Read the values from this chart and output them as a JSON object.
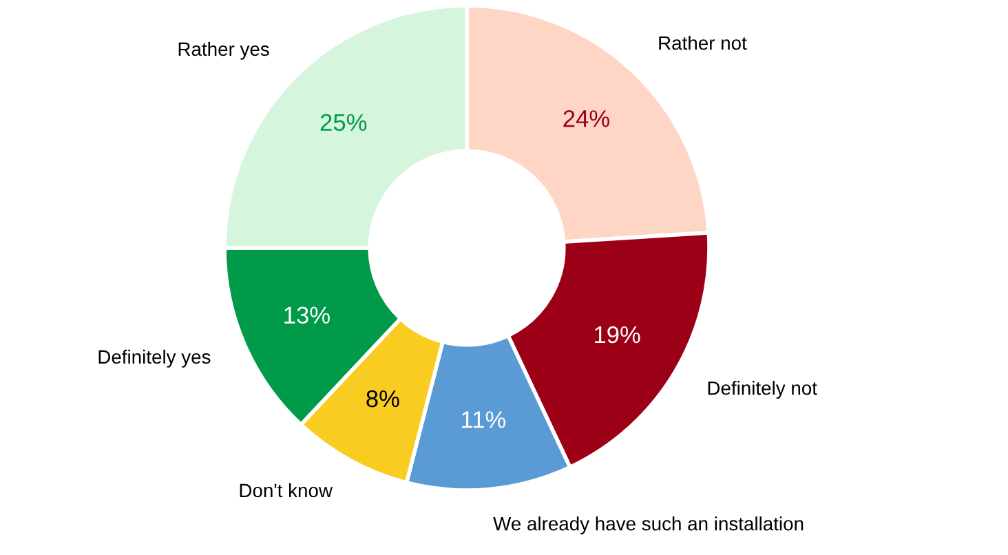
{
  "chart_data": {
    "type": "donut",
    "categories": [
      "Rather not",
      "Definitely not",
      "We already have such an installation",
      "Don't know",
      "Definitely yes",
      "Rather yes"
    ],
    "values": [
      24,
      19,
      11,
      8,
      13,
      25
    ],
    "colors": [
      "#ffd5c5",
      "#9b0016",
      "#5b9bd5",
      "#f9cc22",
      "#009a49",
      "#d5f5dc"
    ],
    "value_labels": [
      "24%",
      "19%",
      "11%",
      "8%",
      "13%",
      "25%"
    ]
  }
}
